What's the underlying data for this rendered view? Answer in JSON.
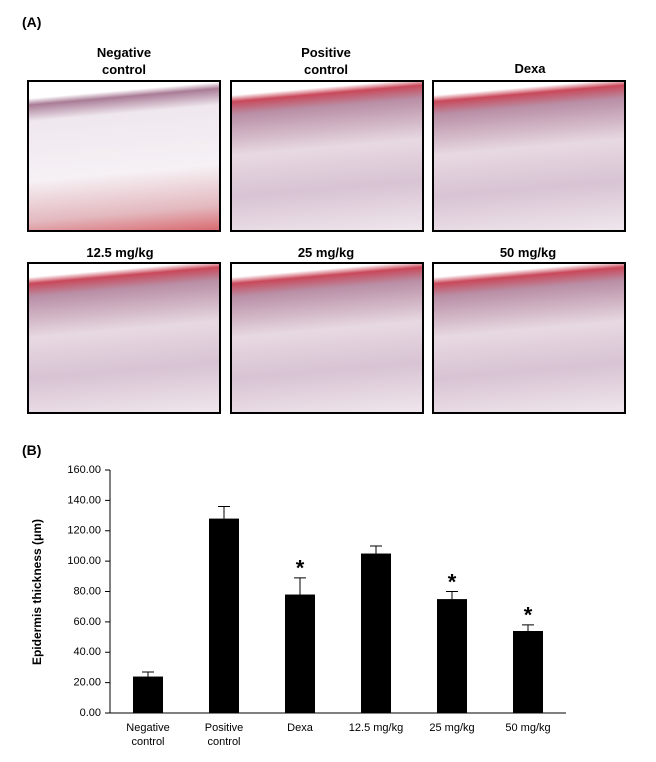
{
  "panel_a": {
    "label": "(A)",
    "images": [
      {
        "label": "Negative control"
      },
      {
        "label": "Positive control"
      },
      {
        "label": "Dexa"
      },
      {
        "label": "12.5 mg/kg"
      },
      {
        "label": "25 mg/kg"
      },
      {
        "label": "50 mg/kg"
      }
    ]
  },
  "panel_b_label": "(B)",
  "chart_data": {
    "type": "bar",
    "ylabel": "Epidermis thickness (μm)",
    "categories": [
      "Negative control",
      "Positive control",
      "Dexa",
      "12.5 mg/kg",
      "25 mg/kg",
      "50 mg/kg"
    ],
    "values": [
      24,
      128,
      78,
      105,
      75,
      54
    ],
    "errors": [
      3,
      8,
      11,
      5,
      5,
      4
    ],
    "significance": [
      null,
      null,
      "*",
      null,
      "*",
      "*"
    ],
    "color": "#000000",
    "ylim": [
      0,
      160
    ],
    "yticks": [
      {
        "value": 0,
        "label": "0.00"
      },
      {
        "value": 20,
        "label": "20.00"
      },
      {
        "value": 40,
        "label": "40.00"
      },
      {
        "value": 60,
        "label": "60.00"
      },
      {
        "value": 80,
        "label": "80.00"
      },
      {
        "value": 100,
        "label": "100.00"
      },
      {
        "value": 120,
        "label": "120.00"
      },
      {
        "value": 140,
        "label": "140.00"
      },
      {
        "value": 160,
        "label": "160.00"
      }
    ],
    "grid": false
  }
}
